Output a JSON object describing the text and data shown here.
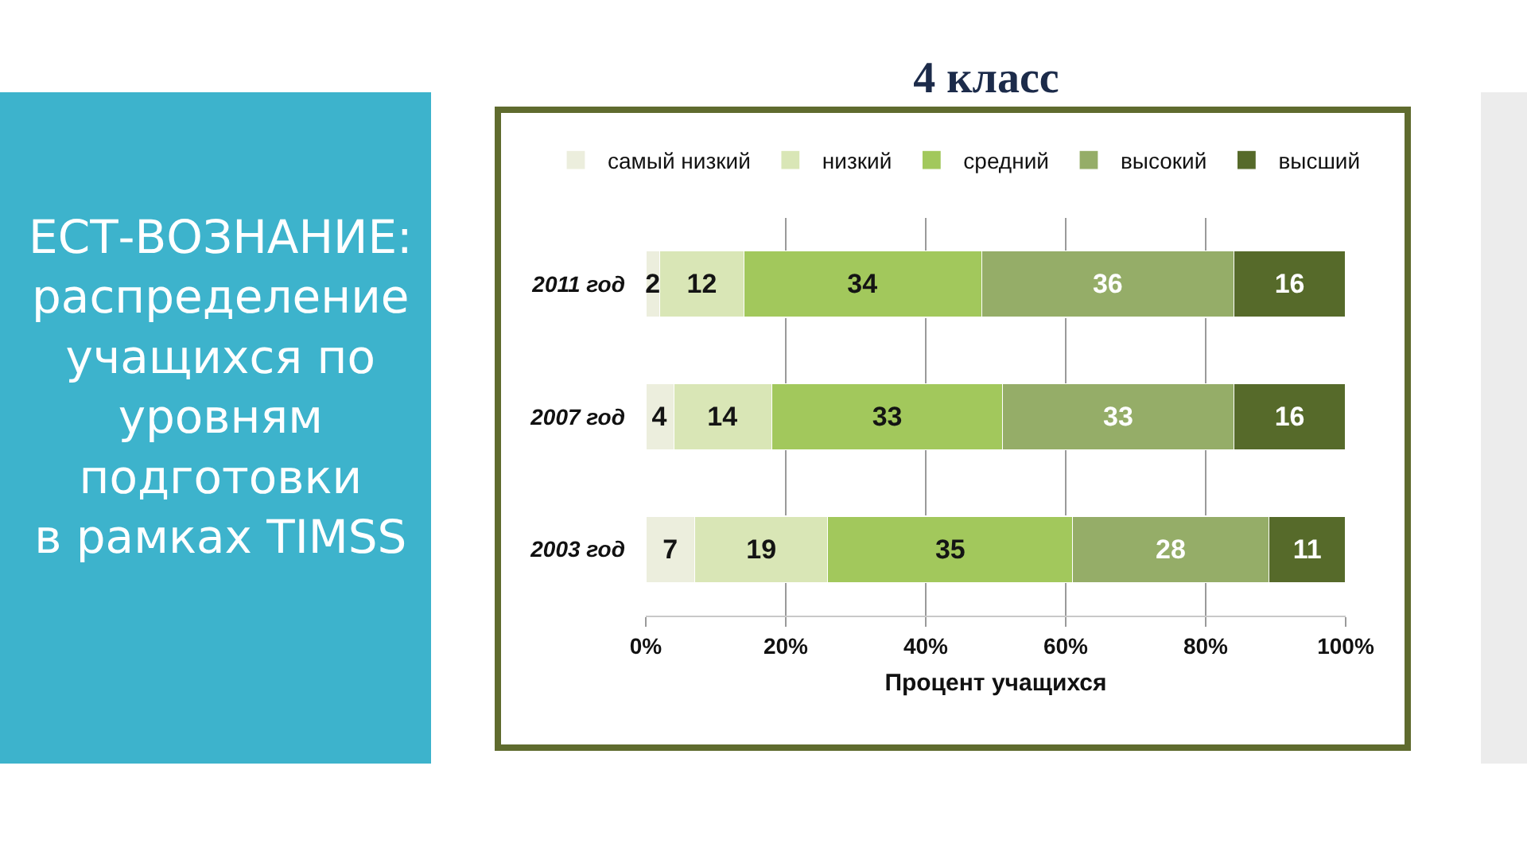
{
  "chart_data": {
    "type": "bar",
    "orientation": "horizontal",
    "stacked": true,
    "title": "4 класс",
    "annotations": [
      "ЕСТ-ВОЗНАНИЕ:\nраспределение\nучащихся по\nуровням\nподготовки\nв рамках TIMSS"
    ],
    "xlabel": "Процент учащихся",
    "categories": [
      "2011 год",
      "2007 год",
      "2003 год"
    ],
    "series": [
      {
        "name": "самый низкий",
        "color": "#eceedd",
        "values": [
          2,
          4,
          7
        ]
      },
      {
        "name": "низкий",
        "color": "#d9e6b6",
        "values": [
          12,
          14,
          19
        ]
      },
      {
        "name": "средний",
        "color": "#a2c85c",
        "values": [
          34,
          33,
          35
        ]
      },
      {
        "name": "высокий",
        "color": "#95ad68",
        "values": [
          36,
          33,
          28
        ]
      },
      {
        "name": "высший",
        "color": "#566a2a",
        "values": [
          16,
          16,
          11
        ]
      }
    ],
    "xlim": [
      0,
      100
    ],
    "xticks": [
      {
        "value": 0,
        "label": "0%"
      },
      {
        "value": 20,
        "label": "20%"
      },
      {
        "value": 40,
        "label": "40%"
      },
      {
        "value": 60,
        "label": "60%"
      },
      {
        "value": 80,
        "label": "80%"
      },
      {
        "value": 100,
        "label": "100%"
      }
    ],
    "grid": "x",
    "legend": "top",
    "data_labels": true
  }
}
